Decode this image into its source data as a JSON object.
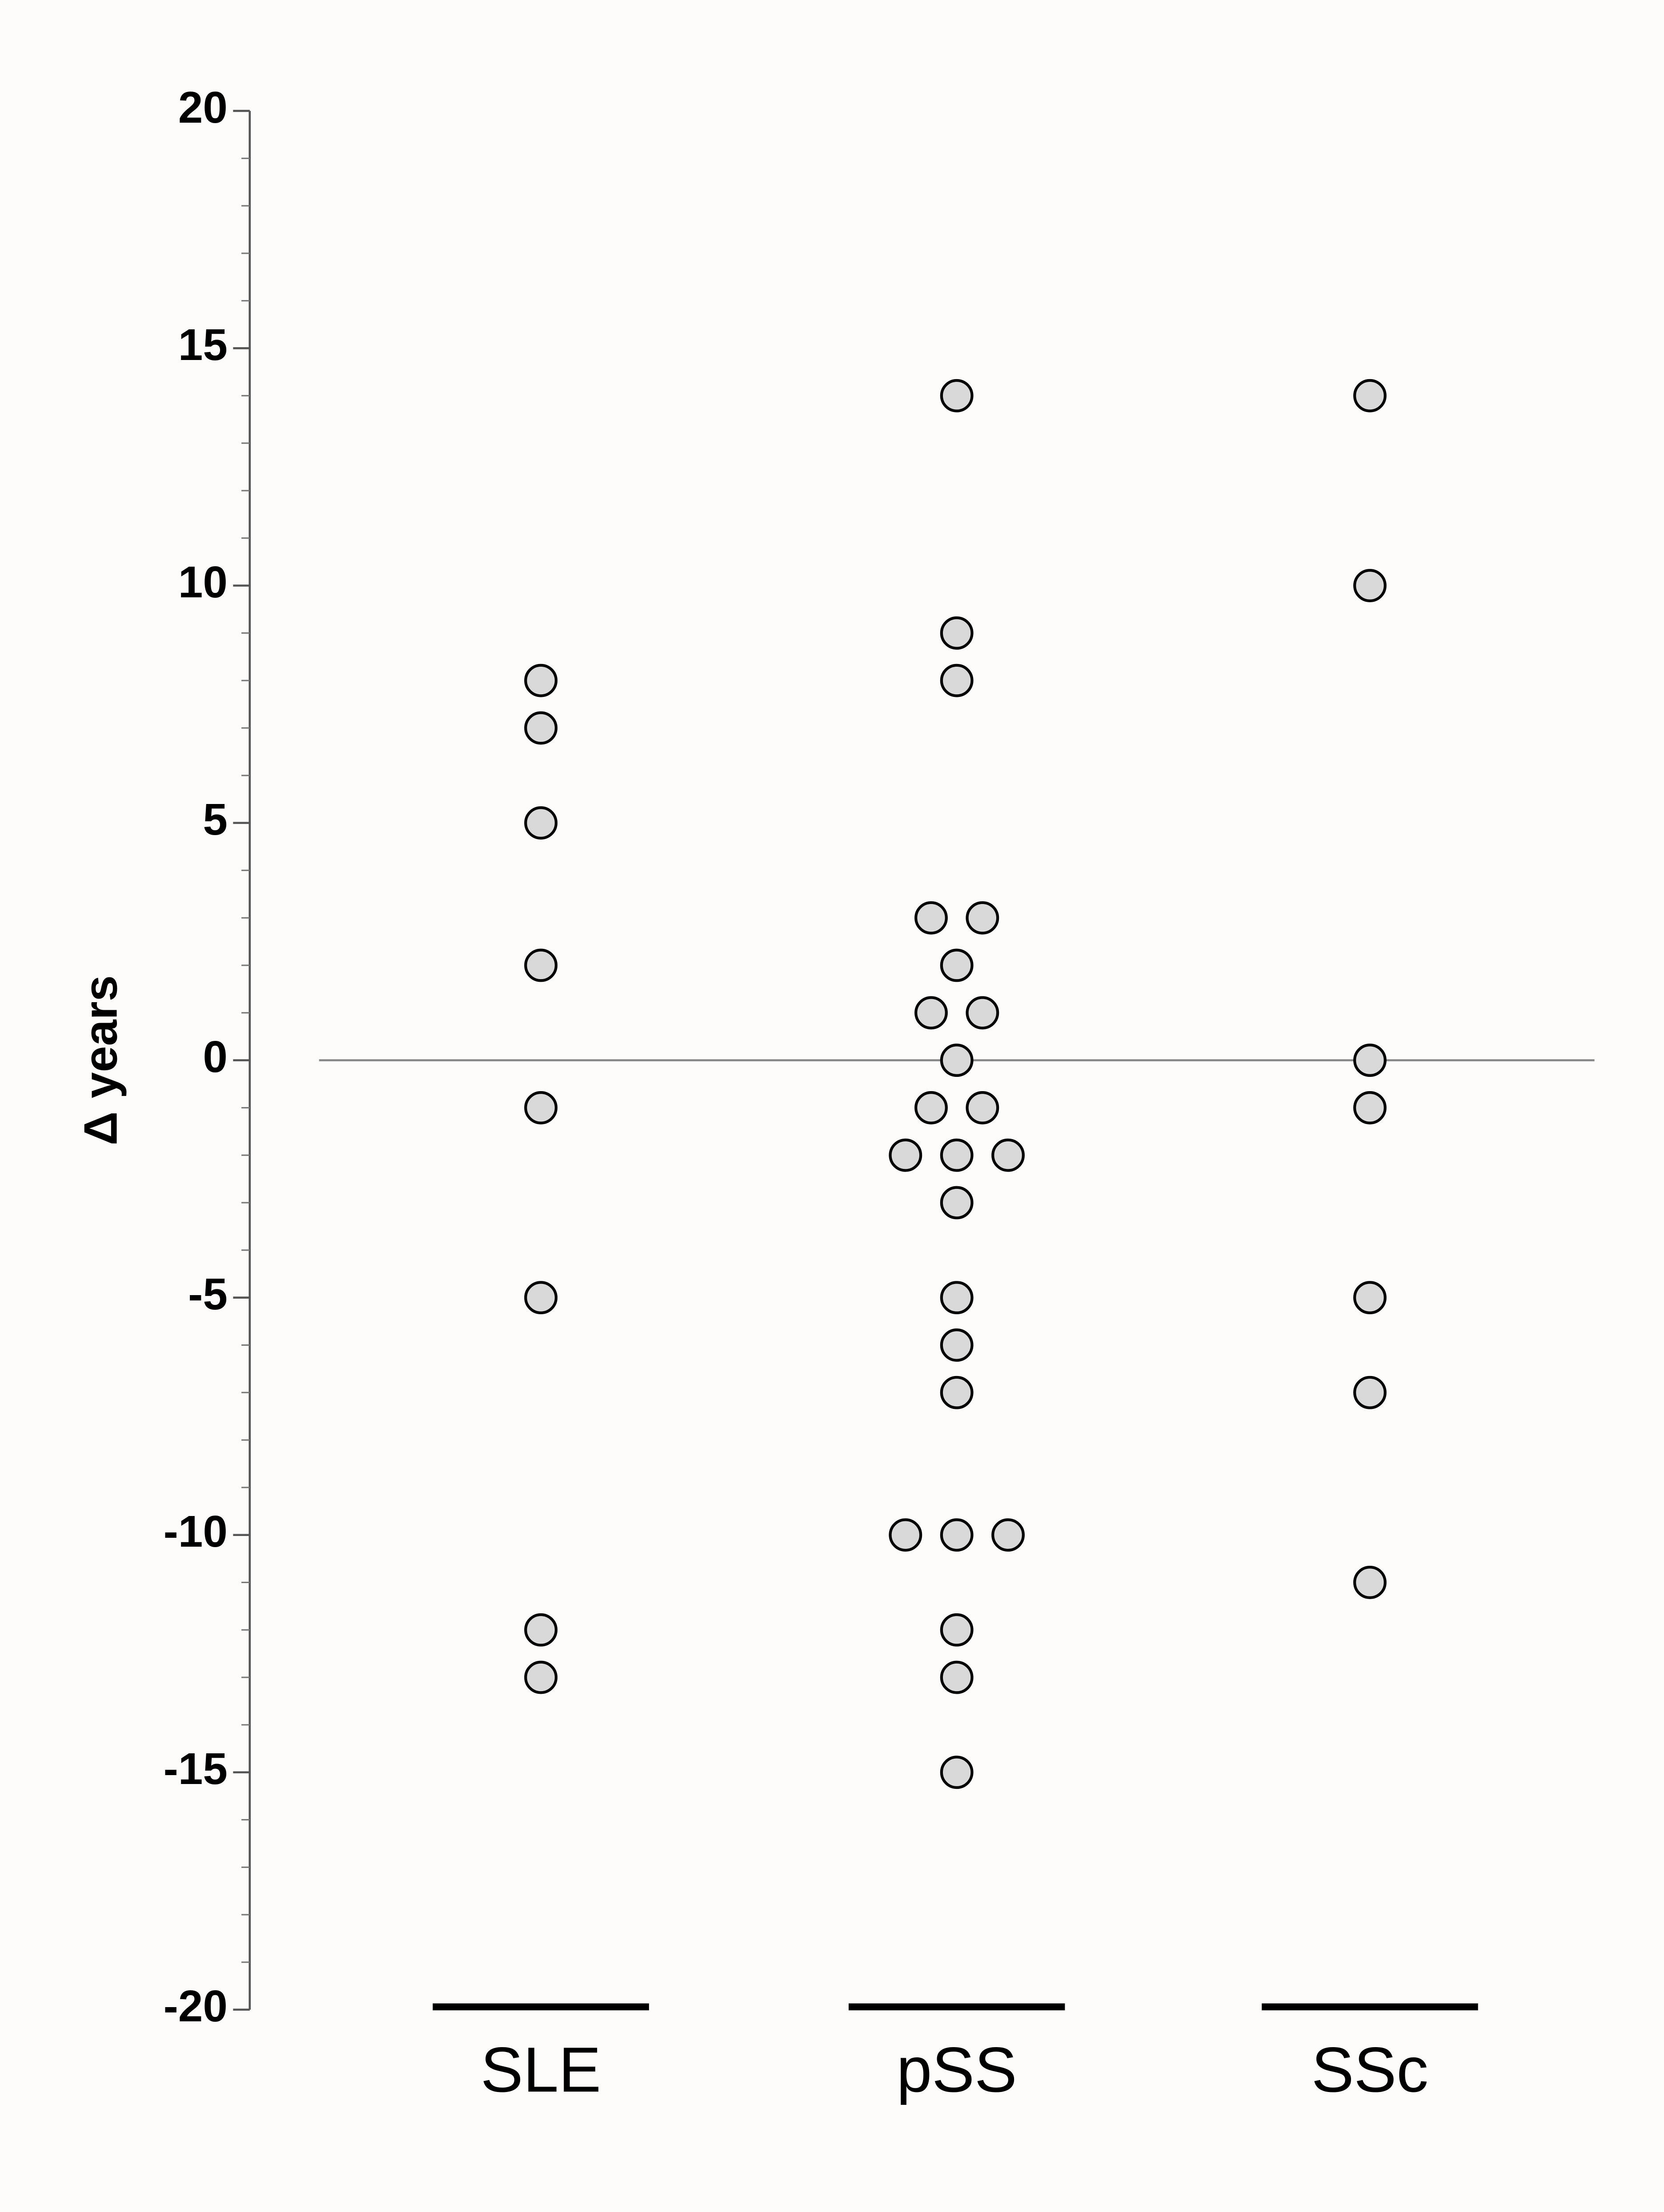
{
  "chart_data": {
    "type": "dotplot",
    "ylabel": "Δ years",
    "categories": [
      "SLE",
      "pSS",
      "SSc"
    ],
    "values": [
      [
        8,
        7,
        5,
        2,
        -1,
        -5,
        -13,
        -12
      ],
      [
        14,
        9,
        8,
        3,
        3,
        2,
        1,
        1,
        0,
        -1,
        -1,
        -2,
        -2,
        -2,
        -3,
        -5,
        -6,
        -7,
        -10,
        -10,
        -10,
        -12,
        -13,
        -15
      ],
      [
        14,
        10,
        0,
        -1,
        -5,
        -7,
        -11
      ]
    ],
    "color": "#d9d9d9",
    "ylim": [
      -20,
      20
    ],
    "yticks": [
      -20,
      -15,
      -10,
      -5,
      0,
      5,
      10,
      15,
      20
    ],
    "yminor": 1,
    "hline": 0
  }
}
